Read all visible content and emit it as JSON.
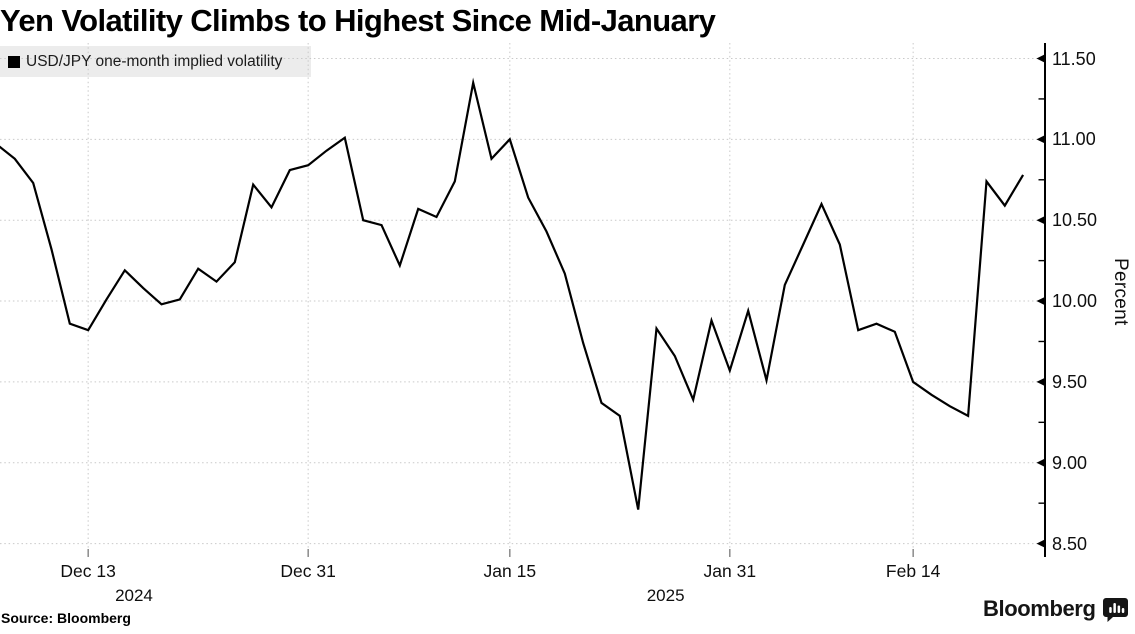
{
  "title": "Yen Volatility Climbs to Highest Since Mid-January",
  "legend": {
    "label": "USD/JPY one-month implied volatility"
  },
  "source_note": "Source: Bloomberg",
  "brand": {
    "wordmark": "Bloomberg",
    "icon": "bloomberg-bars-icon"
  },
  "colors": {
    "line": "#000000",
    "grid": "#c9c9c9",
    "legend_bg": "#ececec",
    "axis": "#000000",
    "x_tick": "#7a7a7a",
    "text": "#0f0f0f"
  },
  "chart_data": {
    "type": "line",
    "title": "Yen Volatility Climbs to Highest Since Mid-January",
    "xlabel": "",
    "ylabel": "Percent",
    "ylim": [
      8.5,
      11.5
    ],
    "y_tick_step": 0.5,
    "y_minor_tick_step": 0.25,
    "y_tick_labels": [
      "11.50",
      "11.00",
      "10.50",
      "10.00",
      "9.50",
      "9.00",
      "8.50"
    ],
    "grid": true,
    "legend_position": "top-left",
    "series": [
      {
        "name": "USD/JPY one-month implied volatility",
        "color": "#000000",
        "x": [
          "Dec 6",
          "Dec 9",
          "Dec 10",
          "Dec 11",
          "Dec 12",
          "Dec 13",
          "Dec 16",
          "Dec 17",
          "Dec 18",
          "Dec 19",
          "Dec 20",
          "Dec 23",
          "Dec 24",
          "Dec 25",
          "Dec 26",
          "Dec 27",
          "Dec 30",
          "Dec 31",
          "Jan 1",
          "Jan 2",
          "Jan 3",
          "Jan 6",
          "Jan 7",
          "Jan 8",
          "Jan 9",
          "Jan 10",
          "Jan 13",
          "Jan 14",
          "Jan 15",
          "Jan 16",
          "Jan 17",
          "Jan 20",
          "Jan 21",
          "Jan 22",
          "Jan 23",
          "Jan 24",
          "Jan 27",
          "Jan 28",
          "Jan 29",
          "Jan 30",
          "Jan 31",
          "Feb 3",
          "Feb 4",
          "Feb 5",
          "Feb 6",
          "Feb 7",
          "Feb 10",
          "Feb 11",
          "Feb 12",
          "Feb 13",
          "Feb 14",
          "Feb 17",
          "Feb 18",
          "Feb 19",
          "Feb 20",
          "Feb 21",
          "Feb 24"
        ],
        "values": [
          10.97,
          10.88,
          10.73,
          10.32,
          9.86,
          9.82,
          10.01,
          10.19,
          10.08,
          9.98,
          10.01,
          10.2,
          10.12,
          10.24,
          10.72,
          10.58,
          10.81,
          10.84,
          10.93,
          11.01,
          10.5,
          10.47,
          10.22,
          10.57,
          10.52,
          10.74,
          11.35,
          10.88,
          11.0,
          10.64,
          10.43,
          10.17,
          9.74,
          9.37,
          9.29,
          8.71,
          9.83,
          9.66,
          9.39,
          9.88,
          9.57,
          9.94,
          9.51,
          10.1,
          10.35,
          10.6,
          10.35,
          9.82,
          9.86,
          9.81,
          9.5,
          9.42,
          9.35,
          9.29,
          10.74,
          10.59,
          10.78
        ]
      }
    ],
    "x_ticks": [
      {
        "label": "Dec 13",
        "index": 5
      },
      {
        "label": "Dec 31",
        "index": 17
      },
      {
        "label": "Jan 15",
        "index": 28
      },
      {
        "label": "Jan 31",
        "index": 40
      },
      {
        "label": "Feb 14",
        "index": 50
      }
    ],
    "year_labels": [
      {
        "label": "2024",
        "anchor_index": 7.5
      },
      {
        "label": "2025",
        "anchor_index": 36.5
      }
    ]
  }
}
